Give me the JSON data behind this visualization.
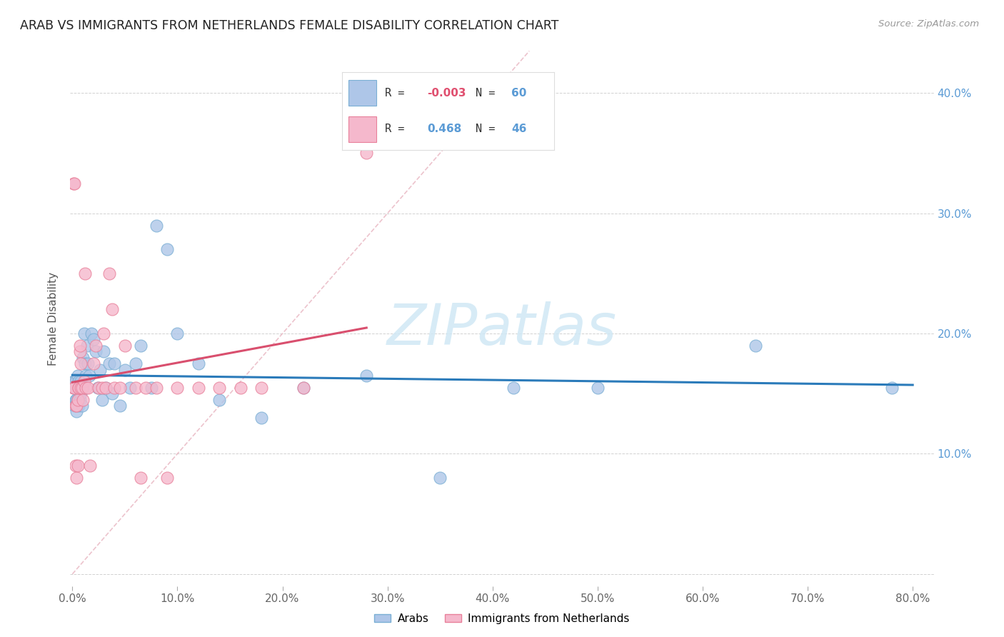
{
  "title": "ARAB VS IMMIGRANTS FROM NETHERLANDS FEMALE DISABILITY CORRELATION CHART",
  "source": "Source: ZipAtlas.com",
  "ylabel": "Female Disability",
  "xlim": [
    -0.002,
    0.82
  ],
  "ylim": [
    -0.01,
    0.435
  ],
  "legend_arab_R": "-0.003",
  "legend_arab_N": "60",
  "legend_imm_R": "0.468",
  "legend_imm_N": "46",
  "arab_color": "#aec6e8",
  "arab_edge_color": "#7aafd4",
  "imm_color": "#f5b8cc",
  "imm_edge_color": "#e8809a",
  "trendline_arab_color": "#2b7bba",
  "trendline_imm_color": "#d94f6e",
  "trendline_diag_color": "#e8b4c0",
  "watermark_color": "#d0e8f5",
  "background_color": "#ffffff",
  "arab_x": [
    0.001,
    0.001,
    0.002,
    0.002,
    0.002,
    0.003,
    0.003,
    0.003,
    0.004,
    0.004,
    0.004,
    0.005,
    0.005,
    0.005,
    0.006,
    0.006,
    0.006,
    0.007,
    0.007,
    0.008,
    0.008,
    0.009,
    0.01,
    0.01,
    0.011,
    0.012,
    0.013,
    0.014,
    0.015,
    0.016,
    0.018,
    0.02,
    0.022,
    0.024,
    0.026,
    0.028,
    0.03,
    0.032,
    0.035,
    0.038,
    0.04,
    0.045,
    0.05,
    0.055,
    0.06,
    0.065,
    0.075,
    0.08,
    0.09,
    0.1,
    0.12,
    0.14,
    0.18,
    0.22,
    0.28,
    0.35,
    0.42,
    0.5,
    0.65,
    0.78
  ],
  "arab_y": [
    0.155,
    0.16,
    0.14,
    0.155,
    0.16,
    0.145,
    0.155,
    0.16,
    0.135,
    0.145,
    0.155,
    0.155,
    0.145,
    0.165,
    0.14,
    0.155,
    0.16,
    0.145,
    0.155,
    0.15,
    0.16,
    0.14,
    0.155,
    0.18,
    0.2,
    0.175,
    0.165,
    0.19,
    0.175,
    0.165,
    0.2,
    0.195,
    0.185,
    0.155,
    0.17,
    0.145,
    0.185,
    0.155,
    0.175,
    0.15,
    0.175,
    0.14,
    0.17,
    0.155,
    0.175,
    0.19,
    0.155,
    0.29,
    0.27,
    0.2,
    0.175,
    0.145,
    0.13,
    0.155,
    0.165,
    0.08,
    0.155,
    0.155,
    0.19,
    0.155
  ],
  "imm_x": [
    0.001,
    0.001,
    0.002,
    0.002,
    0.003,
    0.003,
    0.004,
    0.004,
    0.005,
    0.005,
    0.006,
    0.006,
    0.007,
    0.007,
    0.008,
    0.008,
    0.009,
    0.01,
    0.011,
    0.012,
    0.013,
    0.015,
    0.017,
    0.02,
    0.022,
    0.025,
    0.028,
    0.03,
    0.032,
    0.035,
    0.038,
    0.04,
    0.045,
    0.05,
    0.06,
    0.065,
    0.07,
    0.08,
    0.09,
    0.1,
    0.12,
    0.14,
    0.16,
    0.18,
    0.22,
    0.28
  ],
  "imm_y": [
    0.155,
    0.325,
    0.155,
    0.325,
    0.14,
    0.09,
    0.14,
    0.08,
    0.145,
    0.09,
    0.155,
    0.155,
    0.185,
    0.19,
    0.155,
    0.175,
    0.155,
    0.145,
    0.16,
    0.25,
    0.155,
    0.155,
    0.09,
    0.175,
    0.19,
    0.155,
    0.155,
    0.2,
    0.155,
    0.25,
    0.22,
    0.155,
    0.155,
    0.19,
    0.155,
    0.08,
    0.155,
    0.155,
    0.08,
    0.155,
    0.155,
    0.155,
    0.155,
    0.155,
    0.155,
    0.35
  ]
}
